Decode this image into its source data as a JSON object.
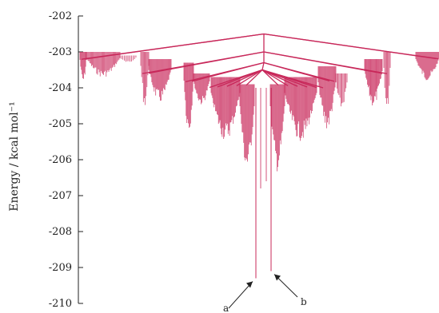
{
  "chart_data": {
    "type": "disconnectivity-graph",
    "ylabel": "Energy / kcal mol⁻¹",
    "ylim": [
      -210,
      -202
    ],
    "yticks": [
      -202,
      -203,
      -204,
      -205,
      -206,
      -207,
      -208,
      -209,
      -210
    ],
    "ytick_labels": [
      "-202",
      "-203",
      "-204",
      "-205",
      "-206",
      "-207",
      "-208",
      "-209",
      "-210"
    ],
    "line_color": "#c8285a",
    "branch_nodes": [
      {
        "id": "root",
        "energy": -202.5
      },
      {
        "id": "level-2",
        "energy": -203.0
      },
      {
        "id": "level-3",
        "energy": -203.3
      },
      {
        "id": "level-4",
        "energy": -203.5
      }
    ],
    "minima": [
      {
        "label": "a",
        "energy": -209.3
      },
      {
        "label": "b",
        "energy": -209.1
      }
    ],
    "annotations": [
      {
        "text": "a",
        "target": "a"
      },
      {
        "text": "b",
        "target": "b"
      }
    ]
  }
}
